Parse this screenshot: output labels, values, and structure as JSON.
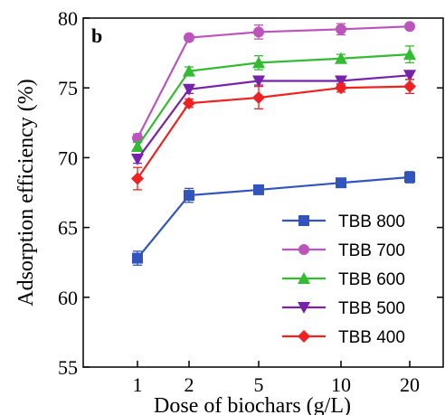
{
  "chart_data": {
    "type": "line",
    "panel_label": "b",
    "xlabel": "Dose of biochars (g/L)",
    "ylabel": "Adsorption efficiency (%)",
    "categories": [
      "1",
      "2",
      "5",
      "10",
      "20"
    ],
    "ylim": [
      55,
      80
    ],
    "yticks": [
      "55",
      "60",
      "65",
      "70",
      "75",
      "80"
    ],
    "grid": false,
    "legend_position": "bottom-right",
    "series": [
      {
        "name": "TBB 800",
        "color": "#3355bb",
        "marker": "square",
        "values": [
          62.8,
          67.3,
          67.7,
          68.2,
          68.6
        ],
        "errors": [
          0.5,
          0.5,
          0.2,
          0.3,
          0.4
        ]
      },
      {
        "name": "TBB 700",
        "color": "#bb55bb",
        "marker": "circle",
        "values": [
          71.4,
          78.6,
          79.0,
          79.2,
          79.4
        ],
        "errors": [
          0.3,
          0.2,
          0.5,
          0.4,
          0.2
        ]
      },
      {
        "name": "TBB 600",
        "color": "#33bb33",
        "marker": "triangle-up",
        "values": [
          70.8,
          76.2,
          76.8,
          77.1,
          77.4
        ],
        "errors": [
          0.3,
          0.3,
          0.5,
          0.3,
          0.6
        ]
      },
      {
        "name": "TBB 500",
        "color": "#7722aa",
        "marker": "triangle-down",
        "values": [
          69.9,
          74.9,
          75.5,
          75.5,
          75.9
        ],
        "errors": [
          0.3,
          0.3,
          0.3,
          0.3,
          0.3
        ]
      },
      {
        "name": "TBB 400",
        "color": "#ee2222",
        "marker": "diamond",
        "values": [
          68.5,
          73.9,
          74.3,
          75.0,
          75.1
        ],
        "errors": [
          0.8,
          0.3,
          0.8,
          0.3,
          0.5
        ]
      }
    ]
  }
}
